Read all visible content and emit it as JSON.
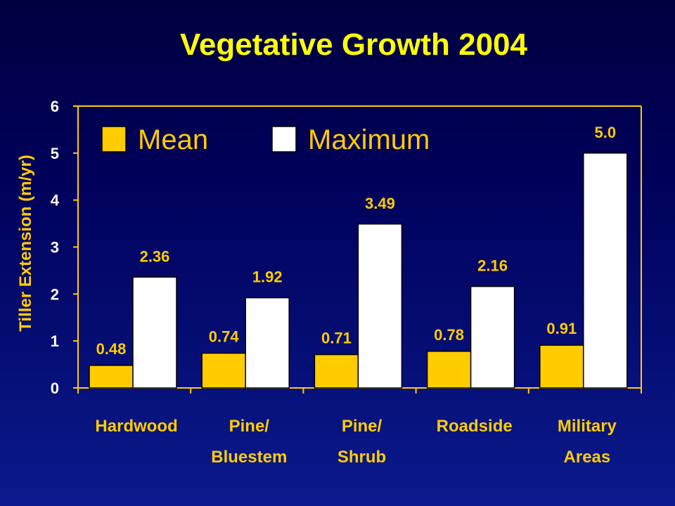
{
  "chart_data": {
    "type": "bar",
    "title": "Vegetative Growth 2004",
    "xlabel": "",
    "ylabel": "Tiller Extension (m/yr)",
    "ylim": [
      0,
      6
    ],
    "yticks": [
      "0",
      "1",
      "2",
      "3",
      "4",
      "5",
      "6"
    ],
    "categories": [
      [
        "Hardwood"
      ],
      [
        "Pine/",
        "Bluestem"
      ],
      [
        "Pine/",
        "Shrub"
      ],
      [
        "Roadside"
      ],
      [
        "Military",
        "Areas"
      ]
    ],
    "series": [
      {
        "name": "Mean",
        "color": "#ffcc00",
        "values": [
          0.48,
          0.74,
          0.71,
          0.78,
          0.91
        ],
        "labels": [
          "0.48",
          "0.74",
          "0.71",
          "0.78",
          "0.91"
        ]
      },
      {
        "name": "Maximum",
        "color": "#ffffff",
        "values": [
          2.36,
          1.92,
          3.49,
          2.16,
          5.0
        ],
        "labels": [
          "2.36",
          "1.92",
          "3.49",
          "2.16",
          "5.0"
        ]
      }
    ],
    "legend_position": "top-left",
    "grid": false
  }
}
